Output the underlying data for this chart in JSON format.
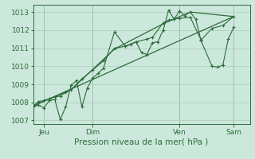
{
  "xlabel": "Pression niveau de la mer( hPa )",
  "bg_color": "#cce8dc",
  "grid_color": "#aaccb8",
  "line_color": "#2d6b3a",
  "tick_label_color": "#2d6b3a",
  "axis_label_color": "#2d6b3a",
  "ylim": [
    1006.8,
    1013.4
  ],
  "yticks": [
    1007,
    1008,
    1009,
    1010,
    1011,
    1012,
    1013
  ],
  "xlim": [
    0,
    20
  ],
  "day_ticks": [
    1.0,
    5.5,
    13.5,
    18.5
  ],
  "day_labels": [
    "Jeu",
    "Dim",
    "Ven",
    "Sam"
  ],
  "minor_x_step": 0.5,
  "series": [
    {
      "x": [
        0,
        0.5,
        1.0,
        1.5,
        2.0,
        2.5,
        3.0,
        3.5,
        4.5,
        5.5,
        6.5,
        7.5,
        8.5,
        9.5,
        10.5,
        11.0,
        12.0,
        12.5,
        13.0,
        13.5,
        14.5,
        15.5,
        16.5,
        17.5,
        18.5
      ],
      "y": [
        1007.8,
        1008.05,
        1008.1,
        1008.2,
        1008.3,
        1008.35,
        1008.55,
        1008.7,
        1009.3,
        1009.8,
        1010.3,
        1011.0,
        1011.1,
        1011.35,
        1011.5,
        1011.6,
        1012.4,
        1012.55,
        1012.6,
        1012.65,
        1012.7,
        1011.45,
        1012.1,
        1012.25,
        1012.75
      ],
      "marker": true
    },
    {
      "x": [
        0,
        0.5,
        1.0,
        1.5,
        2.0,
        2.5,
        3.0,
        3.5,
        4.0,
        4.5,
        5.0,
        5.5,
        6.0,
        6.5,
        7.5,
        8.5,
        9.0,
        9.5,
        10.0,
        10.5,
        11.0,
        11.5,
        12.0,
        12.5,
        13.0,
        13.5,
        14.0,
        14.5,
        15.0,
        15.5,
        16.5,
        17.0,
        17.5,
        18.0,
        18.5
      ],
      "y": [
        1007.75,
        1007.85,
        1007.7,
        1008.1,
        1008.15,
        1007.05,
        1007.75,
        1008.95,
        1009.2,
        1007.75,
        1008.8,
        1009.35,
        1009.6,
        1009.9,
        1011.9,
        1011.1,
        1011.2,
        1011.35,
        1010.75,
        1010.65,
        1011.3,
        1011.35,
        1012.0,
        1013.1,
        1012.6,
        1013.05,
        1012.8,
        1013.0,
        1012.6,
        1011.4,
        1010.0,
        1009.95,
        1010.05,
        1011.5,
        1012.15
      ],
      "marker": true
    },
    {
      "x": [
        0,
        3.5,
        7.5,
        12.0,
        14.5,
        18.5
      ],
      "y": [
        1007.8,
        1008.7,
        1010.95,
        1012.35,
        1013.0,
        1012.75
      ],
      "marker": false
    },
    {
      "x": [
        0,
        18.5
      ],
      "y": [
        1007.8,
        1012.75
      ],
      "marker": false
    }
  ]
}
